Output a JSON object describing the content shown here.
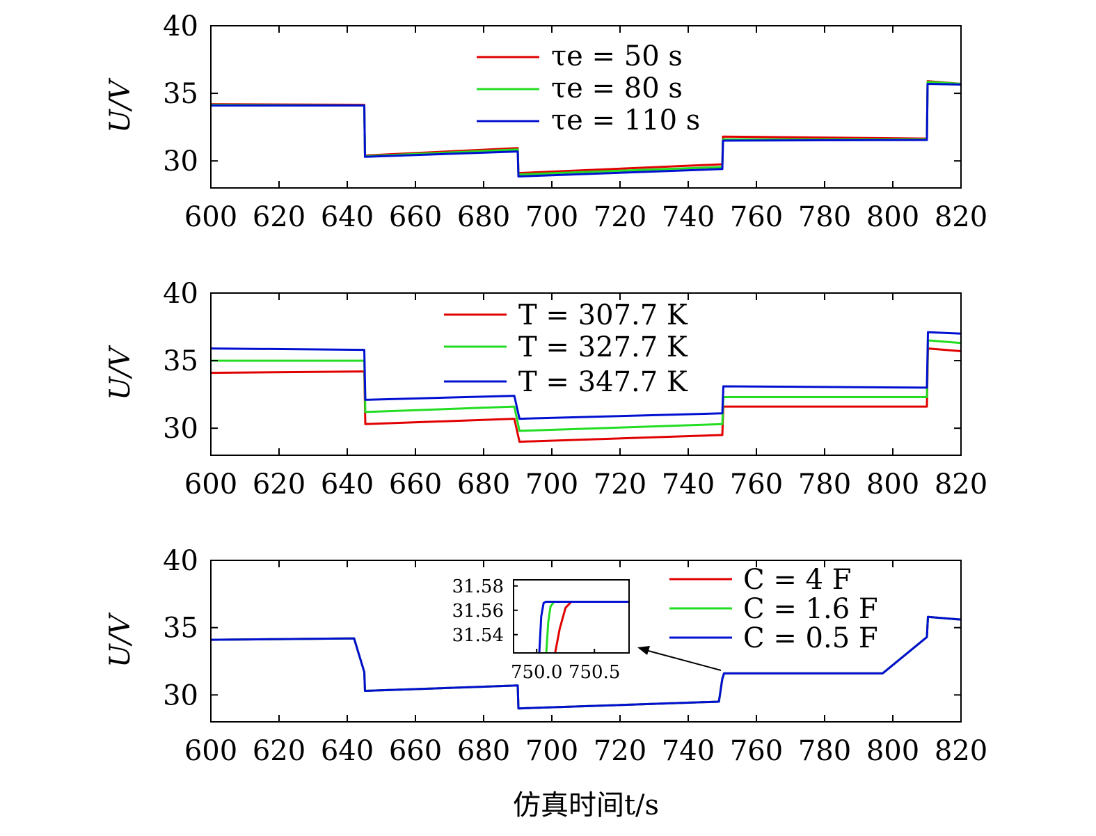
{
  "colors": {
    "red": "#e00000",
    "green": "#22dd22",
    "blue": "#0010d0"
  },
  "xlabel": "仿真时间t/s",
  "chart_data": [
    {
      "type": "line",
      "ylabel": "U/V",
      "xlim": [
        600,
        820
      ],
      "ylim": [
        28,
        40
      ],
      "xticks": [
        "600",
        "620",
        "640",
        "660",
        "680",
        "700",
        "720",
        "740",
        "760",
        "780",
        "800",
        "820"
      ],
      "yticks": [
        "30",
        "35",
        "40"
      ],
      "legend": {
        "placement": "top-center"
      },
      "series": [
        {
          "name": "τe = 50 s",
          "color": "red",
          "x": [
            600,
            645,
            645.2,
            690,
            690.2,
            750,
            750.2,
            810,
            810.2,
            820
          ],
          "y": [
            34.2,
            34.15,
            30.4,
            30.95,
            29.1,
            29.75,
            31.8,
            31.65,
            35.9,
            35.7
          ]
        },
        {
          "name": "τe = 80 s",
          "color": "green",
          "x": [
            600,
            645,
            645.2,
            690,
            690.2,
            750,
            750.2,
            810,
            810.2,
            820
          ],
          "y": [
            34.15,
            34.1,
            30.35,
            30.85,
            29.0,
            29.55,
            31.6,
            31.6,
            35.85,
            35.7
          ]
        },
        {
          "name": "τe = 110 s",
          "color": "blue",
          "x": [
            600,
            645,
            645.2,
            690,
            690.2,
            750,
            750.2,
            810,
            810.2,
            820
          ],
          "y": [
            34.1,
            34.1,
            30.3,
            30.7,
            28.85,
            29.4,
            31.5,
            31.55,
            35.7,
            35.65
          ]
        }
      ]
    },
    {
      "type": "line",
      "ylabel": "U/V",
      "xlim": [
        600,
        820
      ],
      "ylim": [
        28,
        40
      ],
      "xticks": [
        "600",
        "620",
        "640",
        "660",
        "680",
        "700",
        "720",
        "740",
        "760",
        "780",
        "800",
        "820"
      ],
      "yticks": [
        "30",
        "35",
        "40"
      ],
      "legend": {
        "placement": "top-center"
      },
      "series": [
        {
          "name": "T = 307.7 K",
          "color": "red",
          "x": [
            600,
            645,
            645.3,
            689,
            690.5,
            750,
            750.3,
            810,
            810.3,
            820
          ],
          "y": [
            34.1,
            34.2,
            30.3,
            30.7,
            29.0,
            29.5,
            31.6,
            31.6,
            35.9,
            35.7
          ]
        },
        {
          "name": "T = 327.7 K",
          "color": "green",
          "x": [
            600,
            645,
            645.3,
            689,
            690.5,
            750,
            750.3,
            810,
            810.3,
            820
          ],
          "y": [
            35.0,
            35.0,
            31.2,
            31.6,
            29.8,
            30.3,
            32.3,
            32.3,
            36.5,
            36.3
          ]
        },
        {
          "name": "T = 347.7 K",
          "color": "blue",
          "x": [
            600,
            645,
            645.3,
            689,
            690.5,
            750,
            750.3,
            810,
            810.3,
            820
          ],
          "y": [
            35.9,
            35.8,
            32.1,
            32.4,
            30.7,
            31.1,
            33.1,
            33.0,
            37.1,
            37.0
          ]
        }
      ]
    },
    {
      "type": "line",
      "ylabel": "U/V",
      "xlim": [
        600,
        820
      ],
      "ylim": [
        28,
        40
      ],
      "xticks": [
        "600",
        "620",
        "640",
        "660",
        "680",
        "700",
        "720",
        "740",
        "760",
        "780",
        "800",
        "820"
      ],
      "yticks": [
        "30",
        "35",
        "40"
      ],
      "legend": {
        "placement": "top-right"
      },
      "series": [
        {
          "name": "C = 4 F",
          "color": "red",
          "x": [
            600,
            642,
            645,
            645.2,
            690,
            690.2,
            749,
            750,
            750.5,
            797,
            810,
            810.3,
            820
          ],
          "y": [
            34.1,
            34.2,
            31.7,
            30.3,
            30.7,
            29.0,
            29.5,
            31.2,
            31.6,
            31.6,
            34.3,
            35.8,
            35.6
          ]
        },
        {
          "name": "C = 1.6 F",
          "color": "green",
          "x": [
            600,
            642,
            645,
            645.2,
            690,
            690.2,
            749,
            750,
            750.5,
            797,
            810,
            810.3,
            820
          ],
          "y": [
            34.1,
            34.2,
            31.7,
            30.3,
            30.7,
            29.0,
            29.5,
            31.2,
            31.6,
            31.6,
            34.3,
            35.8,
            35.6
          ]
        },
        {
          "name": "C = 0.5 F",
          "color": "blue",
          "x": [
            600,
            642,
            645,
            645.2,
            690,
            690.2,
            749,
            750,
            750.5,
            797,
            810,
            810.3,
            820
          ],
          "y": [
            34.1,
            34.2,
            31.7,
            30.3,
            30.7,
            29.0,
            29.5,
            31.2,
            31.6,
            31.6,
            34.3,
            35.8,
            35.6
          ]
        }
      ],
      "inset": {
        "xlim": [
          749.8,
          750.8
        ],
        "ylim": [
          31.525,
          31.585
        ],
        "xticks": [
          "750.0",
          "750.5"
        ],
        "yticks": [
          "31.58",
          "31.56",
          "31.54"
        ],
        "series": [
          {
            "color": "red",
            "x": [
              749.8,
              750.15,
              750.2,
              750.25,
              750.3,
              750.4,
              750.8
            ],
            "y": [
              31.52,
              31.52,
              31.545,
              31.562,
              31.567,
              31.567,
              31.567
            ]
          },
          {
            "color": "green",
            "x": [
              749.8,
              750.08,
              750.1,
              750.12,
              750.15,
              750.2,
              750.8
            ],
            "y": [
              31.52,
              31.52,
              31.55,
              31.563,
              31.567,
              31.567,
              31.567
            ]
          },
          {
            "color": "blue",
            "x": [
              749.8,
              750.02,
              750.04,
              750.06,
              750.08,
              750.8
            ],
            "y": [
              31.52,
              31.52,
              31.555,
              31.566,
              31.567,
              31.567
            ]
          }
        ]
      }
    }
  ]
}
